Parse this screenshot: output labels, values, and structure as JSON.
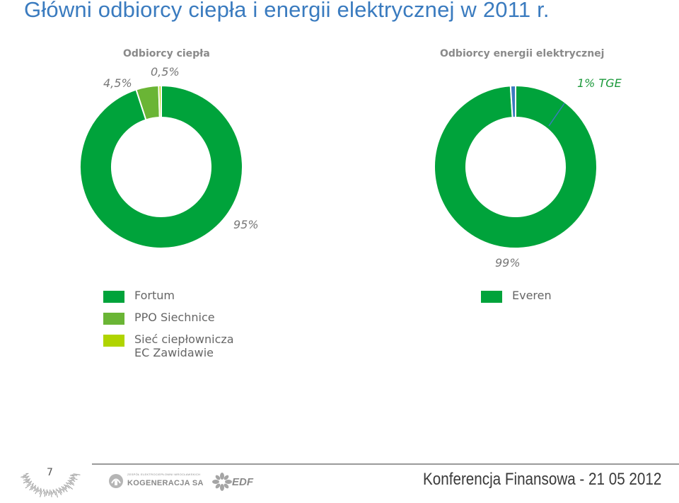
{
  "page": {
    "title": "Główni odbiorcy ciepła i energii elektrycznej w 2011 r.",
    "page_number": "7",
    "footer": "Konferencja Finansowa - 21 05 2012"
  },
  "logos": {
    "kogeneracja": "KOGENERACJA SA",
    "kogeneracja_small": "ZESPÓŁ ELEKTROCIEPŁOWNI WROCŁAWSKICH",
    "edf": "EDF"
  },
  "colors": {
    "title": "#3a7bbf",
    "fortum": "#00a33b",
    "ppo": "#6ab535",
    "siec": "#b0d400",
    "everen": "#00a33b",
    "tge": "#3a7bbf",
    "tge_label": "#1d9a3c"
  },
  "chart_data": [
    {
      "type": "pie",
      "variant": "donut",
      "title": "Odbiorcy ciepła",
      "slices": [
        {
          "label": "Fortum",
          "value": 95,
          "display": "95%"
        },
        {
          "label": "PPO Siechnice",
          "value": 4.5,
          "display": "4,5%"
        },
        {
          "label": "Sieć ciepłownicza EC Zawidawie",
          "value": 0.5,
          "display": "0,5%"
        }
      ],
      "legend": [
        "Fortum",
        "PPO Siechnice",
        "Sieć ciepłownicza\nEC Zawidawie"
      ],
      "legend_placement": "bottom-left"
    },
    {
      "type": "pie",
      "variant": "donut",
      "title": "Odbiorcy energii elektrycznej",
      "slices": [
        {
          "label": "Everen",
          "value": 99,
          "display": "99%"
        },
        {
          "label": "TGE",
          "value": 1,
          "display": "1% TGE"
        }
      ],
      "legend": [
        "Everen"
      ],
      "legend_placement": "bottom"
    }
  ]
}
